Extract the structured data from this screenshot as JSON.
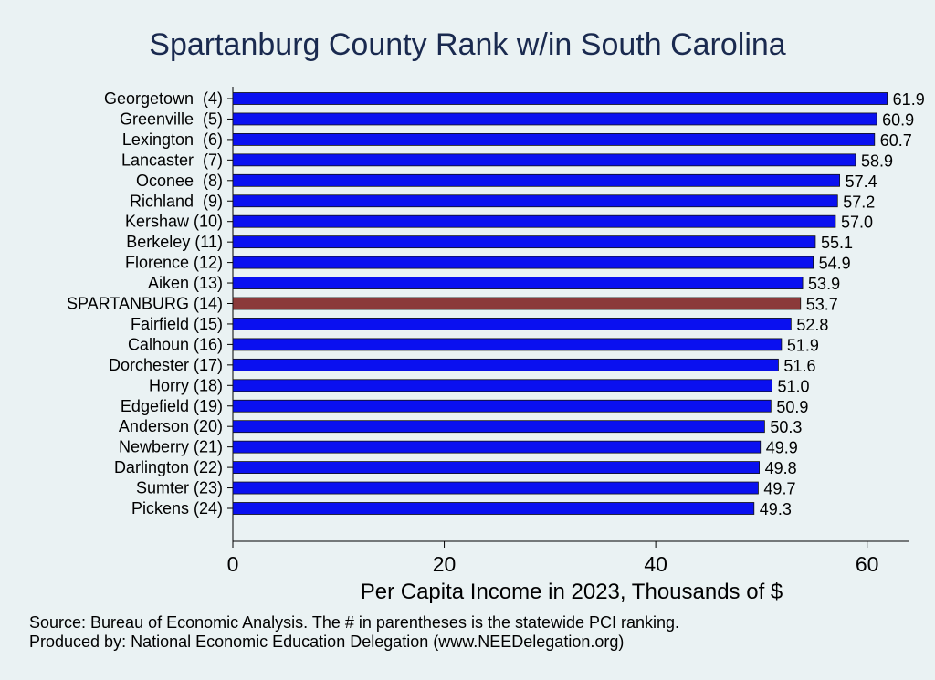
{
  "chart_data": {
    "type": "bar",
    "orientation": "horizontal",
    "title": "Spartanburg County Rank w/in South Carolina",
    "xlabel": "Per Capita Income in 2023, Thousands of $",
    "ylabel": "",
    "xlim": [
      0,
      64
    ],
    "xticks": [
      0,
      20,
      40,
      60
    ],
    "grid": false,
    "legend": "none",
    "categories": [
      "Georgetown  (4)",
      "Greenville  (5)",
      "Lexington  (6)",
      "Lancaster  (7)",
      "Oconee  (8)",
      "Richland  (9)",
      "Kershaw (10)",
      "Berkeley (11)",
      "Florence (12)",
      "Aiken (13)",
      "SPARTANBURG (14)",
      "Fairfield (15)",
      "Calhoun (16)",
      "Dorchester (17)",
      "Horry (18)",
      "Edgefield (19)",
      "Anderson (20)",
      "Newberry (21)",
      "Darlington (22)",
      "Sumter (23)",
      "Pickens (24)"
    ],
    "values": [
      61.9,
      60.9,
      60.7,
      58.9,
      57.4,
      57.2,
      57.0,
      55.1,
      54.9,
      53.9,
      53.7,
      52.8,
      51.9,
      51.6,
      51.0,
      50.9,
      50.3,
      49.9,
      49.8,
      49.7,
      49.3
    ],
    "value_labels": [
      "61.9",
      "60.9",
      "60.7",
      "58.9",
      "57.4",
      "57.2",
      "57.0",
      "55.1",
      "54.9",
      "53.9",
      "53.7",
      "52.8",
      "51.9",
      "51.6",
      "51.0",
      "50.9",
      "50.3",
      "49.9",
      "49.8",
      "49.7",
      "49.3"
    ],
    "highlight_category": "SPARTANBURG (14)",
    "colors": {
      "bar": "#0a10f0",
      "highlight": "#8b3a3a",
      "background": "#eaf2f3",
      "title": "#1a2a4f"
    }
  },
  "notes": {
    "source": "Source: Bureau of Economic Analysis. The # in parentheses is the statewide PCI ranking.",
    "produced_by": "Produced by: National Economic Education Delegation (www.NEEDelegation.org)"
  }
}
